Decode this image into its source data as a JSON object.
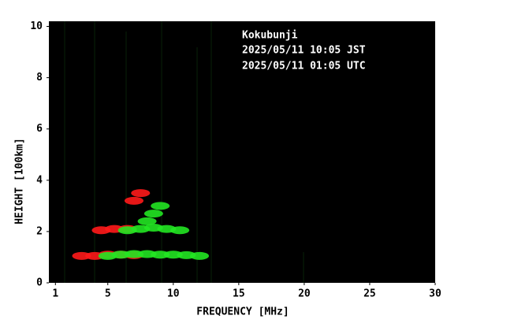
{
  "chart_data": {
    "type": "ionogram",
    "annotations": [
      "Kokubunji",
      "2025/05/11 10:05 JST",
      "2025/05/11 01:05 UTC"
    ],
    "x_label": "FREQUENCY [MHz]",
    "y_label": "HEIGHT [100km]",
    "xlim": [
      0.5,
      30
    ],
    "xticks": [
      1,
      5,
      10,
      15,
      20,
      25,
      30
    ],
    "ylim": [
      0,
      10.2
    ],
    "yticks": [
      0,
      2,
      4,
      6,
      8,
      10
    ],
    "background": "#000000",
    "series": [
      {
        "color": "#ff1a1a",
        "x": [
          3,
          4,
          5,
          6,
          7,
          4.5,
          5.5,
          6.5,
          7,
          7.5
        ],
        "values": [
          1.05,
          1.05,
          1.1,
          1.1,
          1.08,
          2.05,
          2.1,
          2.1,
          3.2,
          3.5
        ]
      },
      {
        "color": "#22e622",
        "x": [
          5,
          6,
          7,
          8,
          9,
          10,
          11,
          12,
          6.5,
          7.5,
          8.5,
          9.5,
          10.5,
          8,
          8.5,
          9
        ],
        "values": [
          1.05,
          1.1,
          1.12,
          1.12,
          1.1,
          1.1,
          1.08,
          1.05,
          2.05,
          2.1,
          2.15,
          2.1,
          2.05,
          2.4,
          2.7,
          3.0
        ]
      }
    ]
  }
}
